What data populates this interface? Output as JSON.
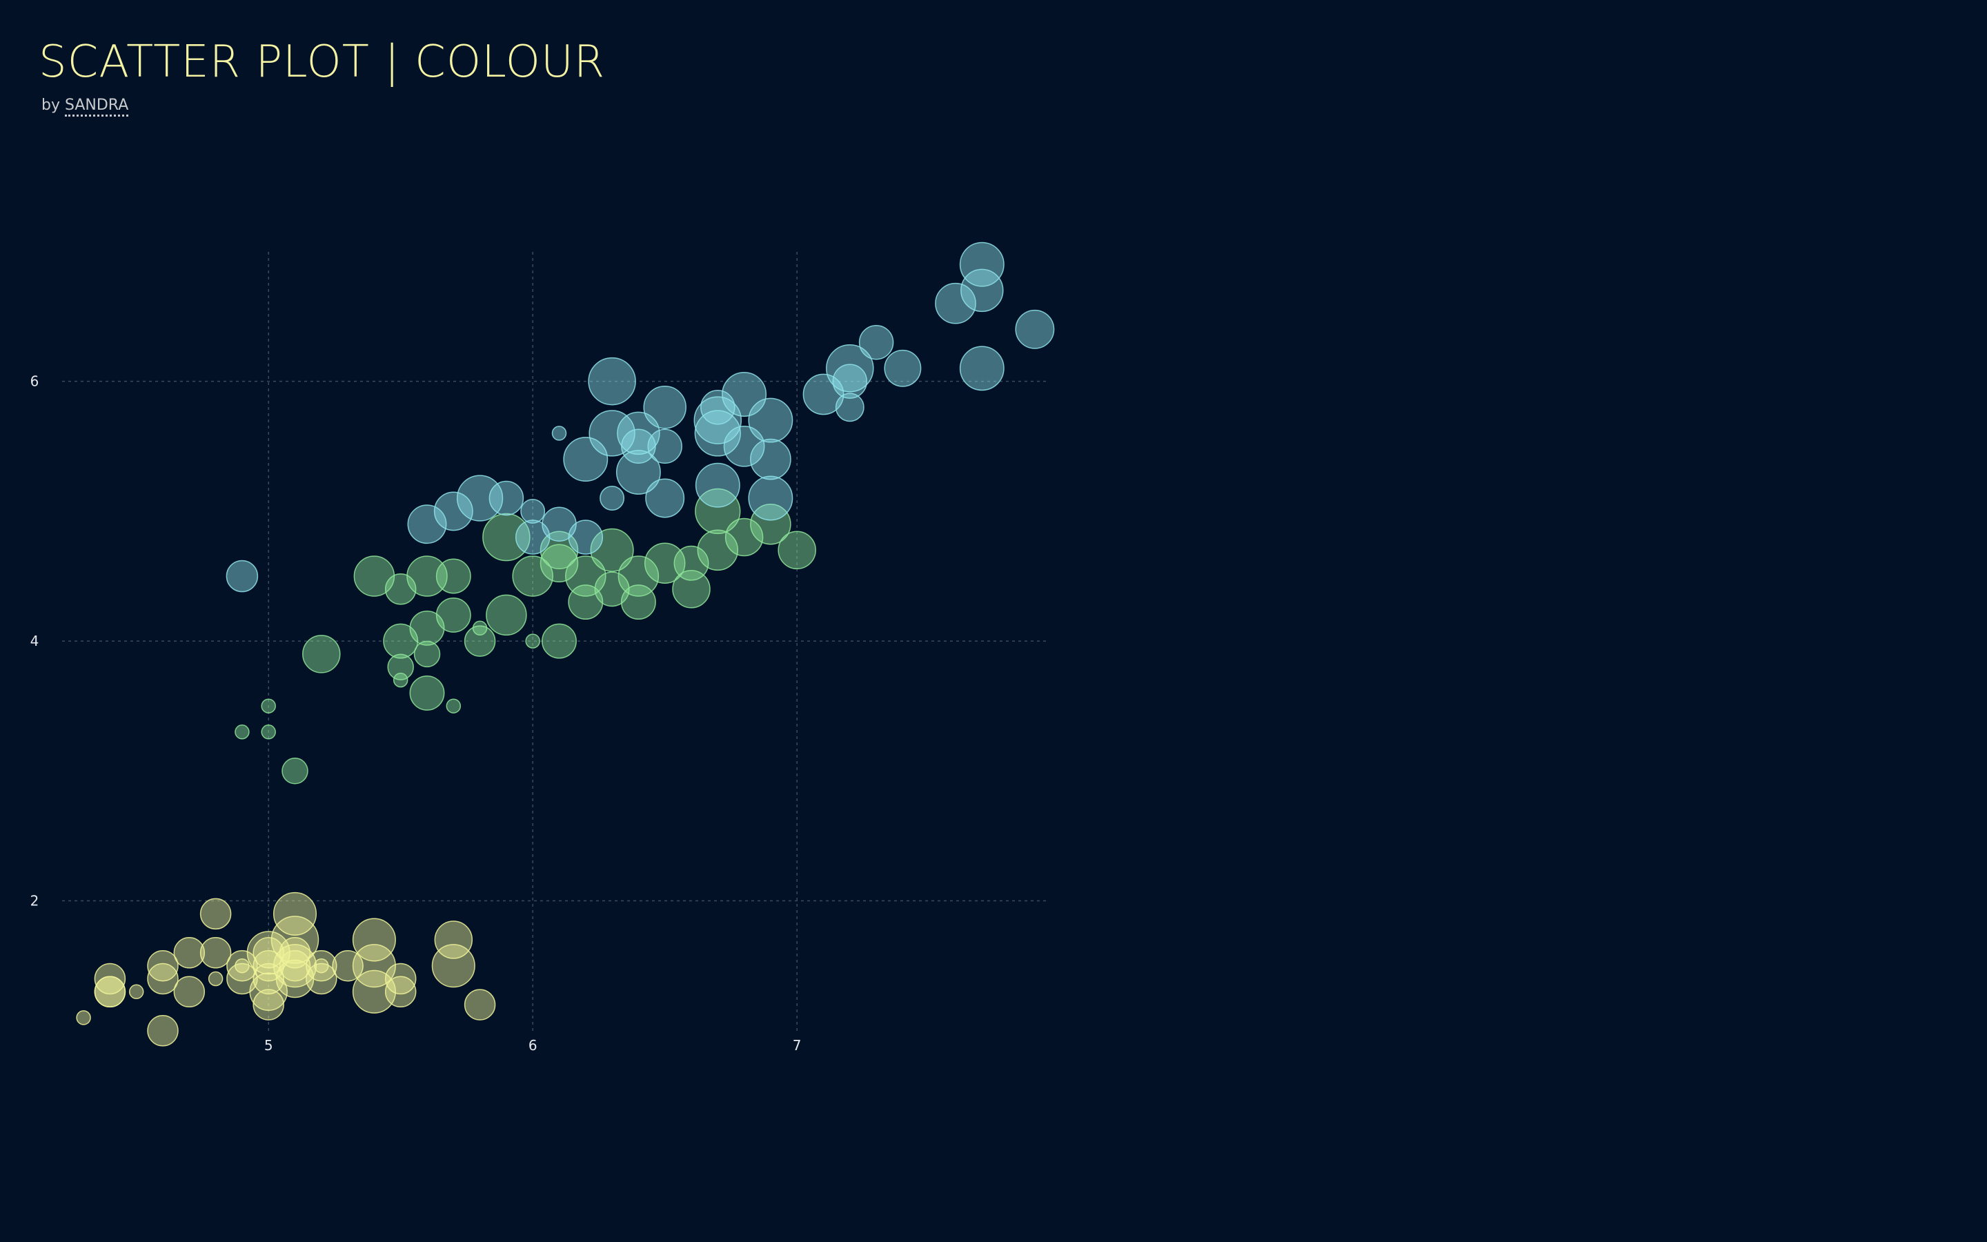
{
  "header": {
    "title": "SCATTER PLOT | COLOUR",
    "by_prefix": "by ",
    "author": "SANDRA"
  },
  "colors": {
    "background": "#021126",
    "title": "#f4f3a4",
    "cluster_a": "#f0f39a",
    "cluster_b": "#8fe69a",
    "cluster_c": "#8fe3ea"
  },
  "chart_data": {
    "type": "scatter",
    "title": "",
    "xlabel": "",
    "ylabel": "",
    "x_ticks": [
      "5",
      "6",
      "7"
    ],
    "y_ticks": [
      "2",
      "4",
      "6"
    ],
    "xlim": [
      4.25,
      7.95
    ],
    "ylim": [
      0.85,
      7.05
    ],
    "grid": true,
    "legend": "none",
    "series": [
      {
        "color": "#f0f39a",
        "points": [
          [
            4.3,
            1.1,
            0.1
          ],
          [
            4.4,
            1.3,
            0.2
          ],
          [
            4.4,
            1.4,
            0.2
          ],
          [
            4.5,
            1.3,
            0.1
          ],
          [
            4.6,
            1.0,
            0.2
          ],
          [
            4.6,
            1.4,
            0.2
          ],
          [
            4.6,
            1.5,
            0.2
          ],
          [
            4.7,
            1.3,
            0.2
          ],
          [
            4.7,
            1.6,
            0.2
          ],
          [
            4.8,
            1.4,
            0.1
          ],
          [
            4.8,
            1.6,
            0.2
          ],
          [
            4.8,
            1.9,
            0.2
          ],
          [
            4.9,
            1.5,
            0.1
          ],
          [
            4.9,
            1.4,
            0.2
          ],
          [
            5.0,
            1.5,
            0.2
          ],
          [
            5.0,
            1.4,
            0.2
          ],
          [
            5.0,
            1.6,
            0.4
          ],
          [
            5.0,
            1.3,
            0.3
          ],
          [
            5.0,
            1.2,
            0.2
          ],
          [
            5.0,
            1.6,
            0.2
          ],
          [
            5.1,
            1.5,
            0.2
          ],
          [
            5.1,
            1.4,
            0.3
          ],
          [
            5.1,
            1.7,
            0.5
          ],
          [
            5.1,
            1.9,
            0.4
          ],
          [
            5.1,
            1.5,
            0.4
          ],
          [
            5.1,
            1.6,
            0.2
          ],
          [
            5.2,
            1.5,
            0.1
          ],
          [
            5.2,
            1.4,
            0.2
          ],
          [
            5.3,
            1.5,
            0.2
          ],
          [
            5.4,
            1.7,
            0.4
          ],
          [
            5.4,
            1.5,
            0.4
          ],
          [
            5.4,
            1.3,
            0.4
          ],
          [
            5.5,
            1.4,
            0.2
          ],
          [
            5.5,
            1.3,
            0.2
          ],
          [
            5.7,
            1.5,
            0.4
          ],
          [
            5.7,
            1.7,
            0.3
          ],
          [
            5.8,
            1.2,
            0.2
          ],
          [
            5.2,
            1.5,
            0.2
          ],
          [
            4.9,
            1.5,
            0.2
          ],
          [
            4.4,
            1.3,
            0.2
          ]
        ]
      },
      {
        "color": "#8fe69a",
        "points": [
          [
            4.9,
            3.3,
            1.0
          ],
          [
            5.0,
            3.3,
            1.0
          ],
          [
            5.0,
            3.5,
            1.0
          ],
          [
            5.1,
            3.0,
            1.1
          ],
          [
            5.2,
            3.9,
            1.4
          ],
          [
            5.4,
            4.5,
            1.5
          ],
          [
            5.5,
            4.0,
            1.3
          ],
          [
            5.5,
            3.8,
            1.1
          ],
          [
            5.5,
            3.7,
            1.0
          ],
          [
            5.5,
            4.4,
            1.2
          ],
          [
            5.6,
            4.5,
            1.5
          ],
          [
            5.6,
            3.6,
            1.3
          ],
          [
            5.6,
            4.1,
            1.3
          ],
          [
            5.6,
            3.9,
            1.1
          ],
          [
            5.7,
            4.5,
            1.3
          ],
          [
            5.7,
            3.5,
            1.0
          ],
          [
            5.7,
            4.2,
            1.3
          ],
          [
            5.8,
            4.0,
            1.2
          ],
          [
            5.8,
            4.1,
            1.0
          ],
          [
            5.9,
            4.8,
            1.8
          ],
          [
            5.9,
            4.2,
            1.5
          ],
          [
            6.0,
            4.5,
            1.5
          ],
          [
            6.0,
            4.0,
            1.0
          ],
          [
            6.1,
            4.7,
            1.4
          ],
          [
            6.1,
            4.0,
            1.3
          ],
          [
            6.2,
            4.3,
            1.3
          ],
          [
            6.2,
            4.5,
            1.5
          ],
          [
            6.3,
            4.7,
            1.6
          ],
          [
            6.3,
            4.4,
            1.3
          ],
          [
            6.4,
            4.5,
            1.5
          ],
          [
            6.4,
            4.3,
            1.3
          ],
          [
            6.5,
            4.6,
            1.5
          ],
          [
            6.6,
            4.6,
            1.3
          ],
          [
            6.6,
            4.4,
            1.4
          ],
          [
            6.7,
            4.7,
            1.5
          ],
          [
            6.7,
            5.0,
            1.7
          ],
          [
            6.8,
            4.8,
            1.4
          ],
          [
            6.9,
            4.9,
            1.5
          ],
          [
            7.0,
            4.7,
            1.4
          ],
          [
            6.1,
            4.6,
            1.4
          ]
        ]
      },
      {
        "color": "#8fe3ea",
        "points": [
          [
            4.9,
            4.5,
            1.7
          ],
          [
            5.6,
            4.9,
            2.0
          ],
          [
            5.7,
            5.0,
            2.0
          ],
          [
            5.8,
            5.1,
            2.4
          ],
          [
            5.9,
            5.1,
            1.8
          ],
          [
            6.0,
            4.8,
            1.8
          ],
          [
            6.1,
            4.9,
            1.8
          ],
          [
            6.1,
            5.6,
            1.4
          ],
          [
            6.2,
            5.4,
            2.3
          ],
          [
            6.3,
            5.6,
            2.4
          ],
          [
            6.3,
            5.1,
            1.5
          ],
          [
            6.3,
            6.0,
            2.5
          ],
          [
            6.4,
            5.5,
            1.8
          ],
          [
            6.4,
            5.3,
            2.3
          ],
          [
            6.5,
            5.8,
            2.2
          ],
          [
            6.5,
            5.5,
            1.8
          ],
          [
            6.5,
            5.1,
            2.0
          ],
          [
            6.7,
            5.7,
            2.5
          ],
          [
            6.7,
            5.6,
            2.4
          ],
          [
            6.7,
            5.2,
            2.3
          ],
          [
            6.8,
            5.9,
            2.3
          ],
          [
            6.8,
            5.5,
            2.1
          ],
          [
            6.9,
            5.7,
            2.3
          ],
          [
            6.9,
            5.4,
            2.1
          ],
          [
            6.9,
            5.1,
            2.3
          ],
          [
            7.1,
            5.9,
            2.1
          ],
          [
            7.2,
            6.1,
            2.5
          ],
          [
            7.2,
            5.8,
            1.6
          ],
          [
            7.3,
            6.3,
            1.8
          ],
          [
            7.4,
            6.1,
            1.9
          ],
          [
            7.6,
            6.6,
            2.1
          ],
          [
            7.7,
            6.7,
            2.2
          ],
          [
            7.7,
            6.9,
            2.3
          ],
          [
            7.7,
            6.1,
            2.3
          ],
          [
            7.9,
            6.4,
            2.0
          ],
          [
            6.0,
            5.0,
            1.5
          ],
          [
            6.2,
            4.8,
            1.8
          ],
          [
            6.4,
            5.6,
            2.2
          ],
          [
            6.7,
            5.8,
            1.8
          ],
          [
            7.2,
            6.0,
            1.8
          ]
        ]
      }
    ]
  }
}
